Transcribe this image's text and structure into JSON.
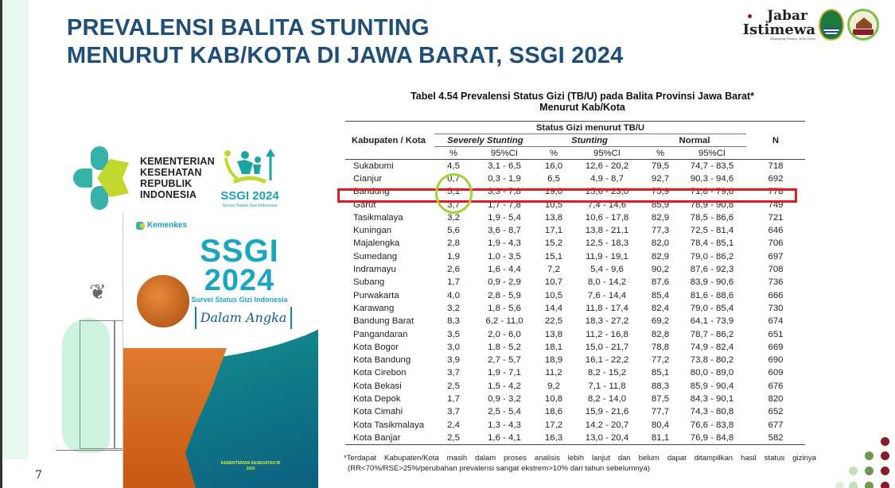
{
  "slide": {
    "title_line1": "PREVALENSI BALITA STUNTING",
    "title_line2": "MENURUT KAB/KOTA DI JAWA BARAT, SSGI 2024",
    "page_number": "7",
    "colors": {
      "title": "#1f4e79",
      "highlight_row": "#e01b24",
      "highlight_circle": "#a6d133",
      "teal": "#1aa6c0",
      "dots_dark": "#8a1a2e",
      "dots_green": "#6b9a4e",
      "dots_light": "#c3e0b8"
    }
  },
  "logos": {
    "jabar_line1": "Jabar",
    "jabar_line2": "Istimewa",
    "jabar_tagline": "Kampung Dunya, Kota Desa",
    "kemenkes_lines": [
      "KEMENTERIAN",
      "KESEHATAN",
      "REPUBLIK",
      "INDONESIA"
    ],
    "ssgi_name": "SSGI 2024",
    "ssgi_sub": "Survei Status Gizi Indonesia"
  },
  "cover": {
    "brand": "Kemenkes",
    "title1": "SSGI",
    "title2": "2024",
    "subtitle": "Survei Status Gizi Indonesia",
    "tagline": "Dalam Angka",
    "footer_line1": "KEMENTERIAN KESEHATAN RI",
    "footer_line2": "2025"
  },
  "table": {
    "caption_line1": "Tabel 4.54 Prevalensi Status Gizi (TB/U) pada Balita Provinsi Jawa Barat*",
    "caption_line2": "Menurut Kab/Kota",
    "header": {
      "region": "Kabupaten / Kota",
      "group": "Status Gizi menurut TB/U",
      "severely": "Severely Stunting",
      "stunting": "Stunting",
      "normal": "Normal",
      "n": "N",
      "pct": "%",
      "ci": "95%CI"
    },
    "highlighted_row": "Bandung",
    "rows": [
      {
        "name": "Sukabumi",
        "sev": "4,5",
        "sev_ci": "3,1 - 6,5",
        "stu": "16,0",
        "stu_ci": "12,6 - 20,2",
        "nor": "79,5",
        "nor_ci": "74,7 - 83,5",
        "n": "718"
      },
      {
        "name": "Cianjur",
        "sev": "0,7",
        "sev_ci": "0,3 - 1,9",
        "stu": "6,5",
        "stu_ci": "4,9 - 8,7",
        "nor": "92,7",
        "nor_ci": "90,3 - 94,6",
        "n": "692"
      },
      {
        "name": "Bandung",
        "sev": "5,1",
        "sev_ci": "3,3 - 7,8",
        "stu": "19,0",
        "stu_ci": "15,6 - 23,0",
        "nor": "75,9",
        "nor_ci": "71,8 - 79,6",
        "n": "778"
      },
      {
        "name": "Garut",
        "sev": "3,7",
        "sev_ci": "1,7 - 7,8",
        "stu": "10,5",
        "stu_ci": "7,4 - 14,6",
        "nor": "85,9",
        "nor_ci": "78,9 - 90,8",
        "n": "749"
      },
      {
        "name": "Tasikmalaya",
        "sev": "3,2",
        "sev_ci": "1,9 - 5,4",
        "stu": "13,8",
        "stu_ci": "10,6 - 17,8",
        "nor": "82,9",
        "nor_ci": "78,5 - 86,6",
        "n": "721"
      },
      {
        "name": "Kuningan",
        "sev": "5,6",
        "sev_ci": "3,6 - 8,7",
        "stu": "17,1",
        "stu_ci": "13,8 - 21,1",
        "nor": "77,3",
        "nor_ci": "72,5 - 81,4",
        "n": "646"
      },
      {
        "name": "Majalengka",
        "sev": "2,8",
        "sev_ci": "1,9 - 4,3",
        "stu": "15,2",
        "stu_ci": "12,5 - 18,3",
        "nor": "82,0",
        "nor_ci": "78,4 - 85,1",
        "n": "706"
      },
      {
        "name": "Sumedang",
        "sev": "1,9",
        "sev_ci": "1,0 - 3,5",
        "stu": "15,1",
        "stu_ci": "11,9 - 19,1",
        "nor": "82,9",
        "nor_ci": "79,0 - 86,2",
        "n": "697"
      },
      {
        "name": "Indramayu",
        "sev": "2,6",
        "sev_ci": "1,6 - 4,4",
        "stu": "7,2",
        "stu_ci": "5,4 - 9,6",
        "nor": "90,2",
        "nor_ci": "87,6 - 92,3",
        "n": "708"
      },
      {
        "name": "Subang",
        "sev": "1,7",
        "sev_ci": "0,9 - 2,9",
        "stu": "10,7",
        "stu_ci": "8,0 - 14,2",
        "nor": "87,6",
        "nor_ci": "83,9 - 90,6",
        "n": "736"
      },
      {
        "name": "Purwakarta",
        "sev": "4,0",
        "sev_ci": "2,8 - 5,9",
        "stu": "10,5",
        "stu_ci": "7,6 - 14,4",
        "nor": "85,4",
        "nor_ci": "81,6 - 88,6",
        "n": "666"
      },
      {
        "name": "Karawang",
        "sev": "3,2",
        "sev_ci": "1,8 - 5,6",
        "stu": "14,4",
        "stu_ci": "11,8 - 17,4",
        "nor": "82,4",
        "nor_ci": "79,0 - 85,4",
        "n": "730"
      },
      {
        "name": "Bandung Barat",
        "sev": "8,3",
        "sev_ci": "6,2 - 11,0",
        "stu": "22,5",
        "stu_ci": "18,3 - 27,2",
        "nor": "69,2",
        "nor_ci": "64,1 - 73,9",
        "n": "674"
      },
      {
        "name": "Pangandaran",
        "sev": "3,5",
        "sev_ci": "2,0 - 6,0",
        "stu": "13,8",
        "stu_ci": "11,2 - 16,8",
        "nor": "82,8",
        "nor_ci": "78,7 - 86,2",
        "n": "651"
      },
      {
        "name": "Kota Bogor",
        "sev": "3,0",
        "sev_ci": "1,8 - 5,2",
        "stu": "18,1",
        "stu_ci": "15,0 - 21,7",
        "nor": "78,8",
        "nor_ci": "74,9 - 82,4",
        "n": "669"
      },
      {
        "name": "Kota Bandung",
        "sev": "3,9",
        "sev_ci": "2,7 - 5,7",
        "stu": "18,9",
        "stu_ci": "16,1 - 22,2",
        "nor": "77,2",
        "nor_ci": "73,8 - 80,2",
        "n": "690"
      },
      {
        "name": "Kota Cirebon",
        "sev": "3,7",
        "sev_ci": "1,9 - 7,1",
        "stu": "11,2",
        "stu_ci": "8,2 - 15,2",
        "nor": "85,1",
        "nor_ci": "80,0 - 89,0",
        "n": "609"
      },
      {
        "name": "Kota Bekasi",
        "sev": "2,5",
        "sev_ci": "1,5 - 4,2",
        "stu": "9,2",
        "stu_ci": "7,1 - 11,8",
        "nor": "88,3",
        "nor_ci": "85,9 - 90,4",
        "n": "676"
      },
      {
        "name": "Kota Depok",
        "sev": "1,7",
        "sev_ci": "0,9 - 3,2",
        "stu": "10,8",
        "stu_ci": "8,2 - 14,0",
        "nor": "87,5",
        "nor_ci": "84,3 - 90,1",
        "n": "820"
      },
      {
        "name": "Kota Cimahi",
        "sev": "3,7",
        "sev_ci": "2,5 - 5,4",
        "stu": "18,6",
        "stu_ci": "15,9 - 21,6",
        "nor": "77,7",
        "nor_ci": "74,3 - 80,8",
        "n": "652"
      },
      {
        "name": "Kota Tasikmalaya",
        "sev": "2,4",
        "sev_ci": "1,3 - 4,3",
        "stu": "17,2",
        "stu_ci": "14,2 - 20,7",
        "nor": "80,4",
        "nor_ci": "76,6 - 83,8",
        "n": "677"
      },
      {
        "name": "Kota Banjar",
        "sev": "2,5",
        "sev_ci": "1,6 - 4,1",
        "stu": "16,3",
        "stu_ci": "13,0 - 20,4",
        "nor": "81,1",
        "nor_ci": "76,9 - 84,8",
        "n": "582"
      }
    ],
    "footnote_line1": "*Terdapat Kabupaten/Kota masih dalam proses analisis lebih lanjut dan belum dapat ditampilkan hasil status gizinya",
    "footnote_line2": "(RR<70%/RSE>25%/perubahan prevalensi sangat ekstrem>10% dari tahun sebelumnya)"
  }
}
